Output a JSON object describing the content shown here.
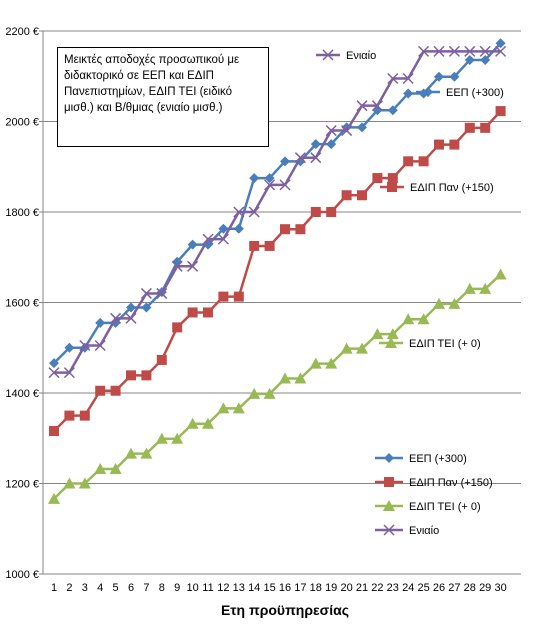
{
  "chart_data": {
    "type": "line",
    "xlabel": "Ετη προϋπηρεσίας",
    "ylabel": "",
    "ylim": [
      1000,
      2200
    ],
    "y_ticks": [
      "1000 €",
      "1200 €",
      "1400 €",
      "1600 €",
      "1800 €",
      "2000 €",
      "2200 €"
    ],
    "grid": true,
    "x": [
      1,
      2,
      3,
      4,
      5,
      6,
      7,
      8,
      9,
      10,
      11,
      12,
      13,
      14,
      15,
      16,
      17,
      18,
      19,
      20,
      21,
      22,
      23,
      24,
      25,
      26,
      27,
      28,
      29,
      30
    ],
    "annotation": "Μεικτές αποδοχές προσωπικού με διδακτορικό σε ΕΕΠ και ΕΔΙΠ Πανεπιστημίων, ΕΔΙΠ ΤΕΙ (ειδικό μισθ.) και Β/θμιας (ενιαίο μισθ.)",
    "series": [
      {
        "name": "ΕΕΠ (+300)",
        "color": "#4a7ebb",
        "marker": "diamond",
        "values": [
          1466,
          1500,
          1500,
          1555,
          1555,
          1589,
          1589,
          1623,
          1690,
          1728,
          1728,
          1763,
          1763,
          1875,
          1875,
          1912,
          1912,
          1950,
          1950,
          1987,
          1987,
          2025,
          2025,
          2062,
          2062,
          2099,
          2099,
          2136,
          2136,
          2173
        ]
      },
      {
        "name": "ΕΔΙΠ Παν (+150)",
        "color": "#be4b48",
        "marker": "square",
        "values": [
          1316,
          1350,
          1350,
          1405,
          1405,
          1439,
          1439,
          1473,
          1545,
          1578,
          1578,
          1613,
          1613,
          1725,
          1725,
          1762,
          1762,
          1800,
          1800,
          1837,
          1837,
          1875,
          1875,
          1912,
          1912,
          1949,
          1949,
          1986,
          1986,
          2023
        ]
      },
      {
        "name": "ΕΔΙΠ ΤΕΙ (+ 0)",
        "color": "#98b954",
        "marker": "triangle",
        "values": [
          1166,
          1200,
          1200,
          1232,
          1232,
          1266,
          1266,
          1299,
          1299,
          1332,
          1332,
          1366,
          1366,
          1398,
          1398,
          1432,
          1432,
          1465,
          1465,
          1498,
          1498,
          1530,
          1530,
          1563,
          1563,
          1597,
          1597,
          1630,
          1630,
          1662
        ]
      },
      {
        "name": "Ενιαίο",
        "color": "#7d60a0",
        "marker": "x",
        "values": [
          1445,
          1445,
          1505,
          1505,
          1565,
          1565,
          1620,
          1620,
          1680,
          1680,
          1740,
          1740,
          1800,
          1800,
          1860,
          1860,
          1920,
          1920,
          1980,
          1980,
          2035,
          2035,
          2095,
          2095,
          2155,
          2155,
          2155,
          2155,
          2155,
          2155
        ]
      }
    ]
  }
}
